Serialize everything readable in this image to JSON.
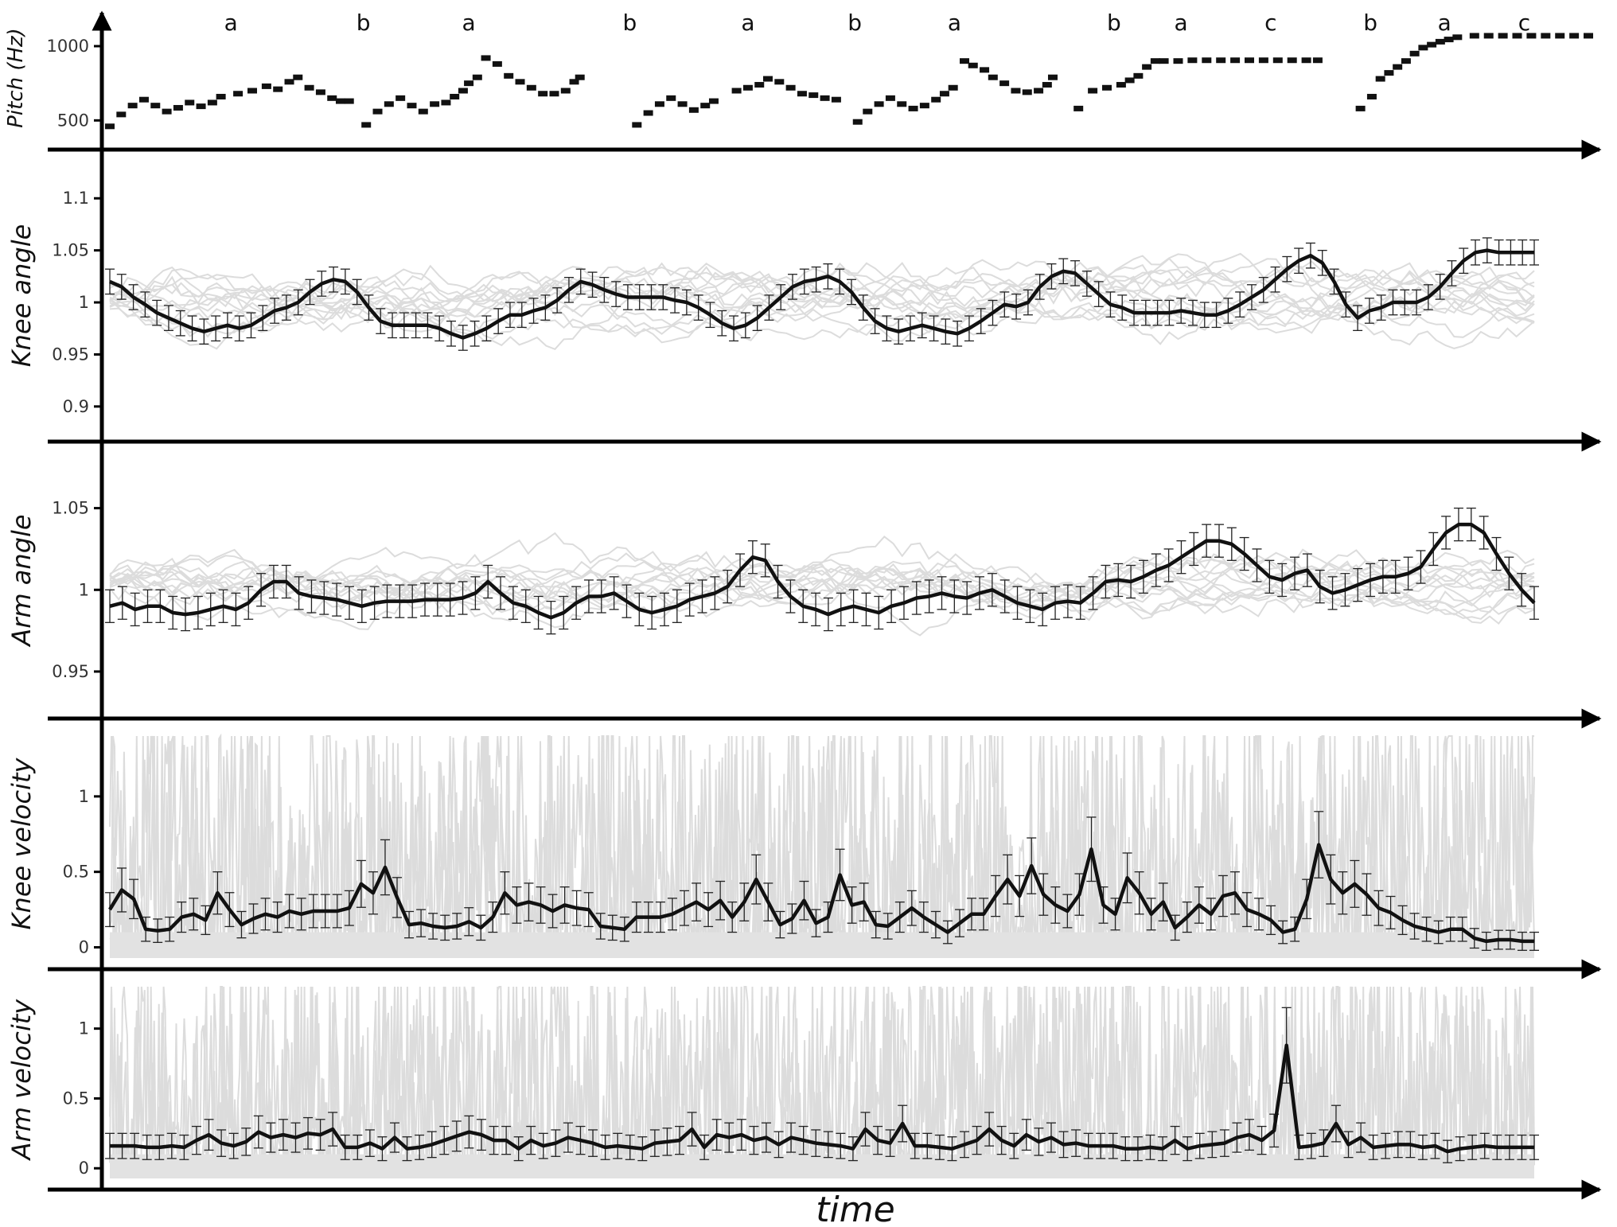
{
  "chart_data": [
    {
      "id": "pitch",
      "type": "scatter",
      "ylabel": "Pitch (Hz)",
      "xlabel": "",
      "ylim": [
        400,
        1150
      ],
      "yticks": [
        500,
        1000
      ],
      "segment_labels": [
        {
          "label": "a",
          "x": 0.085
        },
        {
          "label": "b",
          "x": 0.178
        },
        {
          "label": "a",
          "x": 0.252
        },
        {
          "label": "b",
          "x": 0.365
        },
        {
          "label": "a",
          "x": 0.448
        },
        {
          "label": "b",
          "x": 0.523
        },
        {
          "label": "a",
          "x": 0.593
        },
        {
          "label": "b",
          "x": 0.705
        },
        {
          "label": "a",
          "x": 0.752
        },
        {
          "label": "c",
          "x": 0.815
        },
        {
          "label": "b",
          "x": 0.885
        },
        {
          "label": "a",
          "x": 0.937
        },
        {
          "label": "c",
          "x": 0.993
        }
      ],
      "series": [
        {
          "name": "",
          "points": [
            [
              0.0,
              460
            ],
            [
              0.008,
              540
            ],
            [
              0.016,
              600
            ],
            [
              0.024,
              640
            ],
            [
              0.032,
              600
            ],
            [
              0.04,
              560
            ],
            [
              0.048,
              585
            ],
            [
              0.056,
              620
            ],
            [
              0.064,
              595
            ],
            [
              0.072,
              620
            ],
            [
              0.078,
              660
            ],
            [
              0.09,
              680
            ],
            [
              0.1,
              700
            ],
            [
              0.11,
              730
            ],
            [
              0.118,
              710
            ],
            [
              0.126,
              760
            ],
            [
              0.132,
              790
            ],
            [
              0.14,
              720
            ],
            [
              0.148,
              690
            ],
            [
              0.156,
              650
            ],
            [
              0.162,
              630
            ],
            [
              0.168,
              630
            ],
            [
              0.18,
              470
            ],
            [
              0.188,
              560
            ],
            [
              0.196,
              610
            ],
            [
              0.204,
              650
            ],
            [
              0.212,
              600
            ],
            [
              0.22,
              560
            ],
            [
              0.228,
              610
            ],
            [
              0.236,
              620
            ],
            [
              0.242,
              660
            ],
            [
              0.248,
              700
            ],
            [
              0.252,
              750
            ],
            [
              0.258,
              790
            ],
            [
              0.264,
              920
            ],
            [
              0.272,
              880
            ],
            [
              0.28,
              800
            ],
            [
              0.288,
              760
            ],
            [
              0.296,
              720
            ],
            [
              0.304,
              680
            ],
            [
              0.312,
              680
            ],
            [
              0.32,
              700
            ],
            [
              0.326,
              760
            ],
            [
              0.33,
              790
            ],
            [
              0.37,
              470
            ],
            [
              0.378,
              550
            ],
            [
              0.386,
              610
            ],
            [
              0.394,
              650
            ],
            [
              0.402,
              610
            ],
            [
              0.41,
              570
            ],
            [
              0.418,
              600
            ],
            [
              0.424,
              630
            ],
            [
              0.44,
              700
            ],
            [
              0.448,
              720
            ],
            [
              0.456,
              740
            ],
            [
              0.462,
              780
            ],
            [
              0.47,
              760
            ],
            [
              0.478,
              720
            ],
            [
              0.486,
              680
            ],
            [
              0.494,
              670
            ],
            [
              0.502,
              650
            ],
            [
              0.51,
              640
            ],
            [
              0.525,
              490
            ],
            [
              0.532,
              560
            ],
            [
              0.54,
              610
            ],
            [
              0.548,
              650
            ],
            [
              0.556,
              610
            ],
            [
              0.564,
              580
            ],
            [
              0.572,
              600
            ],
            [
              0.58,
              640
            ],
            [
              0.586,
              680
            ],
            [
              0.592,
              720
            ],
            [
              0.6,
              900
            ],
            [
              0.606,
              870
            ],
            [
              0.614,
              840
            ],
            [
              0.62,
              790
            ],
            [
              0.628,
              750
            ],
            [
              0.636,
              700
            ],
            [
              0.644,
              690
            ],
            [
              0.652,
              700
            ],
            [
              0.658,
              740
            ],
            [
              0.662,
              790
            ],
            [
              0.68,
              580
            ],
            [
              0.69,
              700
            ],
            [
              0.7,
              720
            ],
            [
              0.71,
              740
            ],
            [
              0.716,
              770
            ],
            [
              0.722,
              800
            ],
            [
              0.728,
              860
            ],
            [
              0.734,
              900
            ],
            [
              0.74,
              900
            ],
            [
              0.75,
              900
            ],
            [
              0.76,
              905
            ],
            [
              0.77,
              905
            ],
            [
              0.78,
              905
            ],
            [
              0.79,
              905
            ],
            [
              0.8,
              905
            ],
            [
              0.81,
              905
            ],
            [
              0.82,
              905
            ],
            [
              0.83,
              905
            ],
            [
              0.84,
              905
            ],
            [
              0.848,
              905
            ],
            [
              0.878,
              580
            ],
            [
              0.886,
              660
            ],
            [
              0.892,
              780
            ],
            [
              0.898,
              820
            ],
            [
              0.904,
              860
            ],
            [
              0.91,
              900
            ],
            [
              0.916,
              950
            ],
            [
              0.922,
              990
            ],
            [
              0.928,
              1010
            ],
            [
              0.934,
              1030
            ],
            [
              0.94,
              1045
            ],
            [
              0.946,
              1060
            ],
            [
              0.958,
              1070
            ],
            [
              0.968,
              1070
            ],
            [
              0.978,
              1070
            ],
            [
              0.988,
              1070
            ],
            [
              0.998,
              1070
            ],
            [
              1.008,
              1070
            ],
            [
              1.018,
              1070
            ],
            [
              1.028,
              1070
            ],
            [
              1.038,
              1070
            ]
          ]
        }
      ]
    },
    {
      "id": "knee_angle",
      "type": "line",
      "ylabel": "Knee angle",
      "xlabel": "",
      "ylim": [
        0.88,
        1.13
      ],
      "yticks": [
        0.9,
        0.95,
        1,
        1.05,
        1.1
      ],
      "series": [
        {
          "name": "",
          "values": [
            1.02,
            1.015,
            1.005,
            0.998,
            0.99,
            0.985,
            0.98,
            0.975,
            0.972,
            0.975,
            0.978,
            0.975,
            0.978,
            0.985,
            0.992,
            0.995,
            1.0,
            1.01,
            1.018,
            1.022,
            1.02,
            1.01,
            0.995,
            0.982,
            0.978,
            0.978,
            0.978,
            0.978,
            0.975,
            0.97,
            0.966,
            0.97,
            0.975,
            0.982,
            0.988,
            0.988,
            0.992,
            0.995,
            1.002,
            1.012,
            1.02,
            1.017,
            1.012,
            1.008,
            1.005,
            1.005,
            1.005,
            1.005,
            1.002,
            1.0,
            0.995,
            0.988,
            0.98,
            0.975,
            0.978,
            0.985,
            0.995,
            1.005,
            1.015,
            1.02,
            1.022,
            1.025,
            1.02,
            1.01,
            0.995,
            0.982,
            0.975,
            0.972,
            0.975,
            0.978,
            0.975,
            0.972,
            0.97,
            0.975,
            0.982,
            0.99,
            0.998,
            0.996,
            1.0,
            1.015,
            1.025,
            1.03,
            1.028,
            1.018,
            1.008,
            0.998,
            0.995,
            0.99,
            0.99,
            0.99,
            0.99,
            0.992,
            0.99,
            0.988,
            0.988,
            0.992,
            0.998,
            1.005,
            1.012,
            1.022,
            1.032,
            1.04,
            1.045,
            1.038,
            1.02,
            0.998,
            0.985,
            0.992,
            0.995,
            1.0,
            1.0,
            1.0,
            1.005,
            1.015,
            1.028,
            1.04,
            1.048,
            1.05,
            1.048,
            1.048,
            1.048,
            1.048
          ]
        }
      ]
    },
    {
      "id": "arm_angle",
      "type": "line",
      "ylabel": "Arm angle",
      "xlabel": "",
      "ylim": [
        0.93,
        1.08
      ],
      "yticks": [
        0.95,
        1,
        1.05
      ],
      "series": [
        {
          "name": "",
          "values": [
            0.99,
            0.992,
            0.988,
            0.99,
            0.99,
            0.986,
            0.985,
            0.986,
            0.988,
            0.99,
            0.988,
            0.992,
            1.0,
            1.005,
            1.005,
            0.998,
            0.996,
            0.995,
            0.994,
            0.992,
            0.99,
            0.992,
            0.993,
            0.993,
            0.993,
            0.994,
            0.994,
            0.994,
            0.995,
            0.998,
            1.005,
            0.998,
            0.992,
            0.99,
            0.986,
            0.983,
            0.986,
            0.992,
            0.996,
            0.996,
            0.998,
            0.993,
            0.988,
            0.986,
            0.988,
            0.99,
            0.994,
            0.996,
            0.998,
            1.002,
            1.012,
            1.02,
            1.018,
            1.005,
            0.996,
            0.99,
            0.988,
            0.985,
            0.988,
            0.99,
            0.988,
            0.986,
            0.99,
            0.992,
            0.995,
            0.996,
            0.998,
            0.996,
            0.995,
            0.998,
            1.0,
            0.996,
            0.992,
            0.99,
            0.988,
            0.992,
            0.993,
            0.992,
            0.998,
            1.005,
            1.006,
            1.005,
            1.008,
            1.012,
            1.015,
            1.02,
            1.025,
            1.03,
            1.03,
            1.028,
            1.022,
            1.015,
            1.008,
            1.006,
            1.01,
            1.012,
            1.002,
            0.998,
            1.0,
            1.003,
            1.006,
            1.008,
            1.008,
            1.01,
            1.014,
            1.025,
            1.035,
            1.04,
            1.04,
            1.035,
            1.022,
            1.01,
            1.0,
            0.992
          ]
        }
      ]
    },
    {
      "id": "knee_velocity",
      "type": "line",
      "ylabel": "Knee velocity",
      "xlabel": "",
      "ylim": [
        -0.05,
        1.4
      ],
      "yticks": [
        0,
        0.5,
        1
      ],
      "series": [
        {
          "name": "",
          "values": [
            0.25,
            0.38,
            0.32,
            0.12,
            0.11,
            0.12,
            0.2,
            0.22,
            0.18,
            0.36,
            0.25,
            0.15,
            0.19,
            0.22,
            0.2,
            0.24,
            0.22,
            0.24,
            0.24,
            0.24,
            0.26,
            0.42,
            0.36,
            0.53,
            0.33,
            0.15,
            0.16,
            0.14,
            0.13,
            0.14,
            0.17,
            0.13,
            0.2,
            0.36,
            0.28,
            0.3,
            0.28,
            0.24,
            0.28,
            0.26,
            0.25,
            0.14,
            0.13,
            0.12,
            0.2,
            0.2,
            0.2,
            0.22,
            0.26,
            0.3,
            0.25,
            0.31,
            0.2,
            0.3,
            0.45,
            0.3,
            0.15,
            0.19,
            0.31,
            0.16,
            0.2,
            0.48,
            0.28,
            0.3,
            0.15,
            0.14,
            0.2,
            0.26,
            0.2,
            0.15,
            0.1,
            0.16,
            0.22,
            0.22,
            0.34,
            0.45,
            0.34,
            0.54,
            0.35,
            0.28,
            0.24,
            0.35,
            0.65,
            0.28,
            0.22,
            0.46,
            0.36,
            0.22,
            0.3,
            0.13,
            0.2,
            0.28,
            0.22,
            0.34,
            0.36,
            0.25,
            0.22,
            0.18,
            0.1,
            0.12,
            0.32,
            0.68,
            0.45,
            0.36,
            0.42,
            0.35,
            0.26,
            0.23,
            0.18,
            0.14,
            0.12,
            0.1,
            0.12,
            0.12,
            0.06,
            0.04,
            0.05,
            0.05,
            0.04,
            0.04
          ]
        }
      ]
    },
    {
      "id": "arm_velocity",
      "type": "line",
      "ylabel": "Arm velocity",
      "xlabel": "time",
      "ylim": [
        -0.05,
        1.3
      ],
      "yticks": [
        0,
        0.5,
        1
      ],
      "series": [
        {
          "name": "",
          "values": [
            0.16,
            0.16,
            0.16,
            0.15,
            0.15,
            0.16,
            0.15,
            0.2,
            0.24,
            0.18,
            0.16,
            0.19,
            0.26,
            0.22,
            0.24,
            0.22,
            0.25,
            0.24,
            0.28,
            0.15,
            0.15,
            0.18,
            0.14,
            0.22,
            0.14,
            0.15,
            0.17,
            0.2,
            0.23,
            0.26,
            0.24,
            0.2,
            0.2,
            0.14,
            0.2,
            0.16,
            0.18,
            0.22,
            0.2,
            0.18,
            0.15,
            0.16,
            0.15,
            0.14,
            0.18,
            0.19,
            0.2,
            0.28,
            0.15,
            0.24,
            0.22,
            0.24,
            0.2,
            0.22,
            0.17,
            0.22,
            0.2,
            0.18,
            0.17,
            0.16,
            0.14,
            0.28,
            0.2,
            0.18,
            0.32,
            0.16,
            0.16,
            0.15,
            0.14,
            0.17,
            0.2,
            0.28,
            0.2,
            0.16,
            0.24,
            0.19,
            0.22,
            0.17,
            0.18,
            0.16,
            0.16,
            0.16,
            0.14,
            0.14,
            0.15,
            0.14,
            0.2,
            0.14,
            0.16,
            0.17,
            0.18,
            0.22,
            0.24,
            0.2,
            0.27,
            0.88,
            0.15,
            0.16,
            0.18,
            0.32,
            0.17,
            0.22,
            0.15,
            0.16,
            0.17,
            0.17,
            0.15,
            0.16,
            0.12,
            0.14,
            0.15,
            0.16,
            0.15,
            0.15,
            0.15,
            0.15
          ]
        }
      ]
    }
  ]
}
